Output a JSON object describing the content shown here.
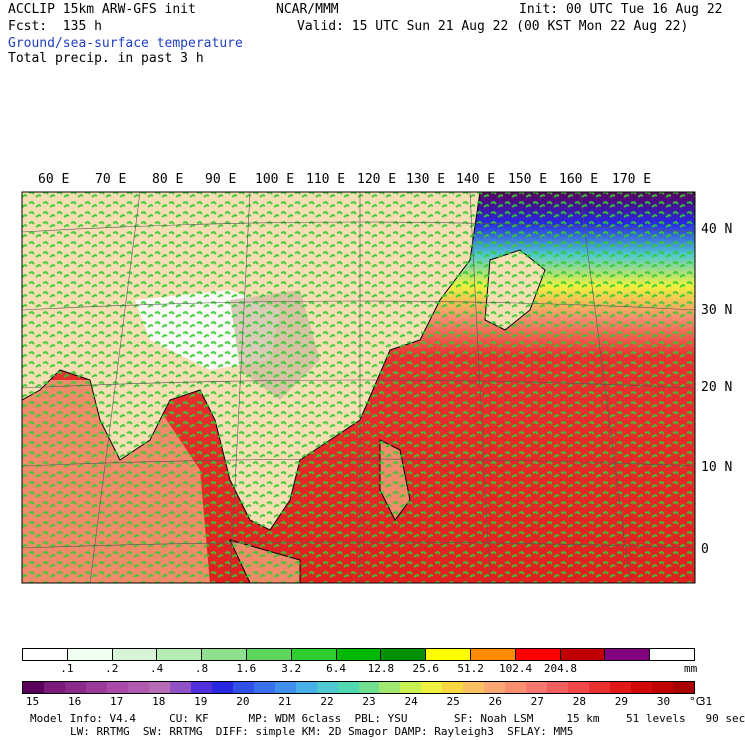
{
  "header": {
    "model": "ACCLIP 15km ARW-GFS init",
    "center": "NCAR/MMM",
    "init": "Init: 00 UTC Tue 16 Aug 22",
    "fcst": "Fcst:  135 h",
    "valid": "Valid: 15 UTC Sun 21 Aug 22 (00 KST Mon 22 Aug 22)",
    "field1": "Ground/sea-surface temperature",
    "field2": "Total precip. in past 3 h",
    "field1_color": "#1f3fbf"
  },
  "map": {
    "lon_labels": [
      "60 E",
      "70 E",
      "80 E",
      "90 E",
      "100 E",
      "110 E",
      "120 E",
      "130 E",
      "140 E",
      "150 E",
      "160 E",
      "170 E"
    ],
    "lat_labels": [
      "40 N",
      "30 N",
      "20 N",
      "10 N",
      "0"
    ]
  },
  "precip_bar": {
    "colors": [
      "#ffffff",
      "#f0fff0",
      "#d8f5d8",
      "#b4ecb4",
      "#8ee08e",
      "#5cd65c",
      "#2ecc2e",
      "#00b800",
      "#009000",
      "#ffff00",
      "#ff8c00",
      "#ff0000",
      "#c00000",
      "#800080",
      "#ffffff"
    ],
    "ticks": [
      ".1",
      ".2",
      ".4",
      ".8",
      "1.6",
      "3.2",
      "6.4",
      "12.8",
      "25.6",
      "51.2",
      "102.4",
      "204.8"
    ],
    "unit": "mm"
  },
  "temp_bar": {
    "colors": [
      "#5a005a",
      "#7a1a7a",
      "#8a2a8a",
      "#9a3a9a",
      "#aa4aaa",
      "#b05ab0",
      "#b86cb8",
      "#9050c8",
      "#5030d8",
      "#2828e0",
      "#3050e8",
      "#3870f0",
      "#4090f0",
      "#48b0e8",
      "#50c8d0",
      "#50d8b0",
      "#70e090",
      "#a0e870",
      "#c8f050",
      "#f0f040",
      "#f8d840",
      "#f8c060",
      "#f8a870",
      "#f89070",
      "#f87870",
      "#f06060",
      "#f04848",
      "#e83030",
      "#e01818",
      "#d00808",
      "#c00000",
      "#a80000"
    ],
    "ticks": [
      "15",
      "16",
      "17",
      "18",
      "19",
      "20",
      "21",
      "22",
      "23",
      "24",
      "25",
      "26",
      "27",
      "28",
      "29",
      "30",
      "31"
    ],
    "unit": "°C"
  },
  "model_info": {
    "line1": "Model Info: V4.4     CU: KF      MP: WDM 6class  PBL: YSU       SF: Noah LSM     15 km    51 levels   90 sec",
    "line2": "LW: RRTMG  SW: RRTMG  DIFF: simple KM: 2D Smagor DAMP: Rayleigh3  SFLAY: MM5"
  }
}
